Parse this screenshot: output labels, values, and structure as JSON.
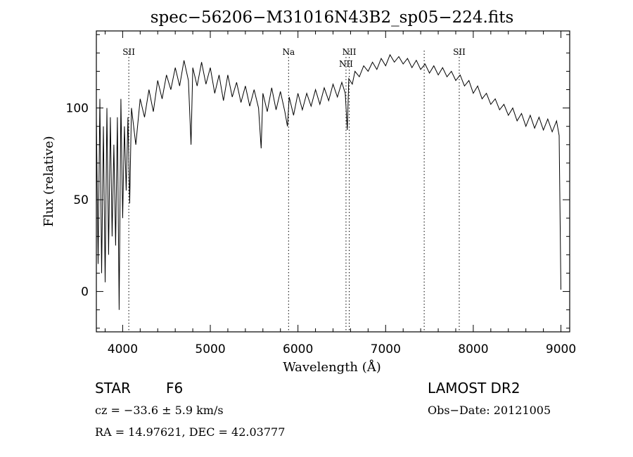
{
  "chart_data": {
    "type": "line",
    "title": "spec−56206−M31016N43B2_sp05−224.fits",
    "xlabel": "Wavelength (Å)",
    "ylabel": "Flux (relative)",
    "xlim": [
      3700,
      9100
    ],
    "ylim": [
      -22,
      142
    ],
    "x_ticks": [
      4000,
      5000,
      6000,
      7000,
      8000,
      9000
    ],
    "y_ticks": [
      0,
      50,
      100
    ],
    "grid": false,
    "series": [
      {
        "values": [
          [
            3700,
            95
          ],
          [
            3720,
            15
          ],
          [
            3740,
            105
          ],
          [
            3760,
            10
          ],
          [
            3780,
            90
          ],
          [
            3800,
            5
          ],
          [
            3820,
            100
          ],
          [
            3840,
            20
          ],
          [
            3860,
            95
          ],
          [
            3880,
            30
          ],
          [
            3900,
            80
          ],
          [
            3920,
            25
          ],
          [
            3940,
            95
          ],
          [
            3960,
            -10
          ],
          [
            3980,
            105
          ],
          [
            4000,
            40
          ],
          [
            4020,
            90
          ],
          [
            4040,
            55
          ],
          [
            4060,
            95
          ],
          [
            4080,
            48
          ],
          [
            4100,
            100
          ],
          [
            4150,
            80
          ],
          [
            4200,
            105
          ],
          [
            4250,
            95
          ],
          [
            4300,
            110
          ],
          [
            4350,
            98
          ],
          [
            4400,
            115
          ],
          [
            4450,
            105
          ],
          [
            4500,
            118
          ],
          [
            4550,
            110
          ],
          [
            4600,
            122
          ],
          [
            4650,
            112
          ],
          [
            4700,
            126
          ],
          [
            4750,
            115
          ],
          [
            4780,
            80
          ],
          [
            4800,
            122
          ],
          [
            4850,
            112
          ],
          [
            4900,
            125
          ],
          [
            4950,
            113
          ],
          [
            5000,
            122
          ],
          [
            5050,
            108
          ],
          [
            5100,
            118
          ],
          [
            5150,
            104
          ],
          [
            5200,
            118
          ],
          [
            5250,
            106
          ],
          [
            5300,
            114
          ],
          [
            5350,
            103
          ],
          [
            5400,
            112
          ],
          [
            5450,
            101
          ],
          [
            5500,
            110
          ],
          [
            5550,
            100
          ],
          [
            5580,
            78
          ],
          [
            5600,
            108
          ],
          [
            5650,
            98
          ],
          [
            5700,
            111
          ],
          [
            5750,
            99
          ],
          [
            5800,
            109
          ],
          [
            5850,
            98
          ],
          [
            5880,
            90
          ],
          [
            5900,
            106
          ],
          [
            5950,
            96
          ],
          [
            6000,
            108
          ],
          [
            6050,
            99
          ],
          [
            6100,
            108
          ],
          [
            6150,
            101
          ],
          [
            6200,
            110
          ],
          [
            6250,
            102
          ],
          [
            6300,
            111
          ],
          [
            6350,
            104
          ],
          [
            6400,
            113
          ],
          [
            6450,
            106
          ],
          [
            6500,
            114
          ],
          [
            6540,
            108
          ],
          [
            6563,
            88
          ],
          [
            6580,
            116
          ],
          [
            6620,
            113
          ],
          [
            6650,
            120
          ],
          [
            6700,
            117
          ],
          [
            6750,
            123
          ],
          [
            6800,
            120
          ],
          [
            6850,
            125
          ],
          [
            6900,
            121
          ],
          [
            6950,
            127
          ],
          [
            7000,
            123
          ],
          [
            7050,
            129
          ],
          [
            7100,
            125
          ],
          [
            7150,
            128
          ],
          [
            7200,
            124
          ],
          [
            7250,
            127
          ],
          [
            7300,
            122
          ],
          [
            7350,
            126
          ],
          [
            7400,
            121
          ],
          [
            7450,
            124
          ],
          [
            7500,
            119
          ],
          [
            7550,
            123
          ],
          [
            7600,
            118
          ],
          [
            7650,
            122
          ],
          [
            7700,
            117
          ],
          [
            7750,
            120
          ],
          [
            7800,
            115
          ],
          [
            7850,
            118
          ],
          [
            7900,
            112
          ],
          [
            7950,
            115
          ],
          [
            8000,
            108
          ],
          [
            8050,
            112
          ],
          [
            8100,
            105
          ],
          [
            8150,
            108
          ],
          [
            8200,
            102
          ],
          [
            8250,
            105
          ],
          [
            8300,
            99
          ],
          [
            8350,
            102
          ],
          [
            8400,
            96
          ],
          [
            8450,
            100
          ],
          [
            8500,
            93
          ],
          [
            8550,
            97
          ],
          [
            8600,
            90
          ],
          [
            8650,
            96
          ],
          [
            8700,
            89
          ],
          [
            8750,
            95
          ],
          [
            8800,
            88
          ],
          [
            8850,
            94
          ],
          [
            8900,
            87
          ],
          [
            8950,
            93
          ],
          [
            8980,
            85
          ],
          [
            9000,
            1
          ]
        ]
      }
    ],
    "line_markers": [
      {
        "label": "SII",
        "x": 4070
      },
      {
        "label": "Na",
        "x": 5893
      },
      {
        "label": "NII",
        "x": 6585
      },
      {
        "label": "NII",
        "x": 6548
      },
      {
        "label": "",
        "x": 7440
      },
      {
        "label": "SII",
        "x": 7840
      }
    ]
  },
  "info": {
    "object_class": "STAR",
    "subclass": "F6",
    "survey": "LAMOST DR2",
    "redshift": "cz = −33.6 ± 5.9 km/s",
    "obs_date": "Obs−Date: 20121005",
    "coords": "RA =  14.97621, DEC =  42.03777"
  }
}
